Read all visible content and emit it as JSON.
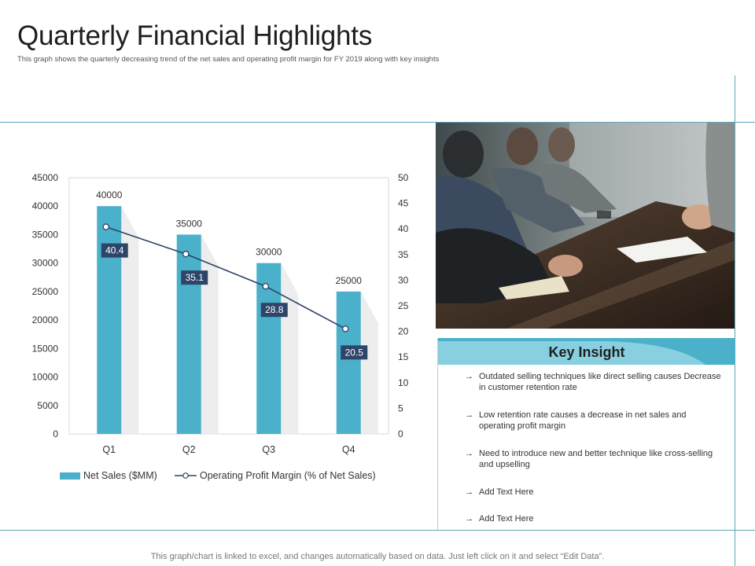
{
  "page": {
    "title": "Quarterly Financial Highlights",
    "subtitle": "This graph shows the quarterly decreasing trend of the net sales and operating profit margin for FY 2019 along with key insights",
    "footer": "This graph/chart is linked to excel, and changes automatically based on data. Just left click on it and select “Edit Data”."
  },
  "colors": {
    "bar": "#4bb0c9",
    "line": "#2e4468",
    "label_box": "#2e4468",
    "accent_rule": "#5aa7bd"
  },
  "chart_data": {
    "type": "bar",
    "categories": [
      "Q1",
      "Q2",
      "Q3",
      "Q4"
    ],
    "series": [
      {
        "name": "Net Sales ($MM)",
        "type": "bar",
        "axis": "left",
        "values": [
          40000,
          35000,
          30000,
          25000
        ]
      },
      {
        "name": "Operating Profit Margin (% of Net Sales)",
        "type": "line",
        "axis": "right",
        "values": [
          40.4,
          35.1,
          28.8,
          20.5
        ]
      }
    ],
    "ylim_left": [
      0,
      45000
    ],
    "yticks_left": [
      "45000",
      "40000",
      "35000",
      "30000",
      "25000",
      "20000",
      "15000",
      "10000",
      "5000",
      "0"
    ],
    "ylim_right": [
      0,
      50
    ],
    "yticks_right": [
      "50",
      "45",
      "40",
      "35",
      "30",
      "25",
      "20",
      "15",
      "10",
      "5",
      "0"
    ],
    "bar_labels": [
      "40000",
      "35000",
      "30000",
      "25000"
    ],
    "line_labels": [
      "40.4",
      "35.1",
      "28.8",
      "20.5"
    ],
    "legend_position": "bottom",
    "grid": false
  },
  "insights": {
    "title": "Key Insight",
    "arrow": "→",
    "items": [
      "Outdated selling techniques like direct selling causes Decrease in customer retention rate",
      "Low retention rate causes a decrease in net sales and operating profit margin",
      "Need to introduce new and better technique like cross-selling and upselling",
      "Add Text Here",
      "Add Text Here"
    ]
  }
}
